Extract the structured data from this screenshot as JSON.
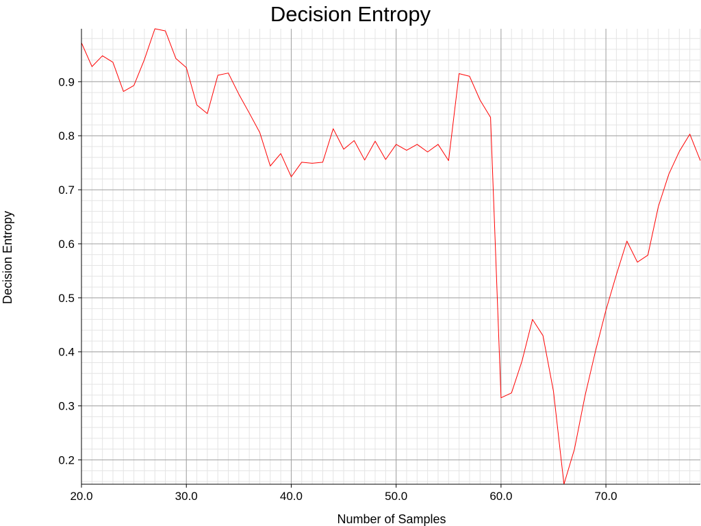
{
  "chart_data": {
    "type": "line",
    "title": "Decision Entropy",
    "xlabel": "Number of Samples",
    "ylabel": "Decision Entropy",
    "xlim": [
      20,
      79
    ],
    "ylim": [
      0.155,
      0.998
    ],
    "xticks": [
      20,
      30,
      40,
      50,
      60,
      70
    ],
    "xtick_labels": [
      "20.0",
      "30.0",
      "40.0",
      "50.0",
      "60.0",
      "70.0"
    ],
    "yticks": [
      0.2,
      0.3,
      0.4,
      0.5,
      0.6,
      0.7,
      0.8,
      0.9
    ],
    "ytick_labels": [
      "0.2",
      "0.3",
      "0.4",
      "0.5",
      "0.6",
      "0.7",
      "0.8",
      "0.9"
    ],
    "grid": true,
    "legend": "none",
    "series": [
      {
        "color": "#ff0000",
        "x": [
          20,
          21,
          22,
          23,
          24,
          25,
          26,
          27,
          28,
          29,
          30,
          31,
          32,
          33,
          34,
          35,
          36,
          37,
          38,
          39,
          40,
          41,
          42,
          43,
          44,
          45,
          46,
          47,
          48,
          49,
          50,
          51,
          52,
          53,
          54,
          55,
          56,
          57,
          58,
          59,
          60,
          61,
          62,
          63,
          64,
          65,
          66,
          67,
          68,
          69,
          70,
          71,
          72,
          73,
          74,
          75,
          76,
          77,
          78,
          79
        ],
        "values": [
          0.972,
          0.928,
          0.948,
          0.936,
          0.882,
          0.893,
          0.941,
          0.998,
          0.994,
          0.943,
          0.926,
          0.857,
          0.841,
          0.912,
          0.916,
          0.877,
          0.842,
          0.806,
          0.744,
          0.767,
          0.724,
          0.751,
          0.749,
          0.751,
          0.813,
          0.775,
          0.791,
          0.755,
          0.79,
          0.756,
          0.784,
          0.773,
          0.784,
          0.77,
          0.784,
          0.754,
          0.915,
          0.91,
          0.866,
          0.834,
          0.315,
          0.324,
          0.383,
          0.46,
          0.43,
          0.327,
          0.155,
          0.22,
          0.318,
          0.401,
          0.477,
          0.543,
          0.605,
          0.566,
          0.579,
          0.669,
          0.729,
          0.771,
          0.803,
          0.754
        ]
      }
    ]
  }
}
